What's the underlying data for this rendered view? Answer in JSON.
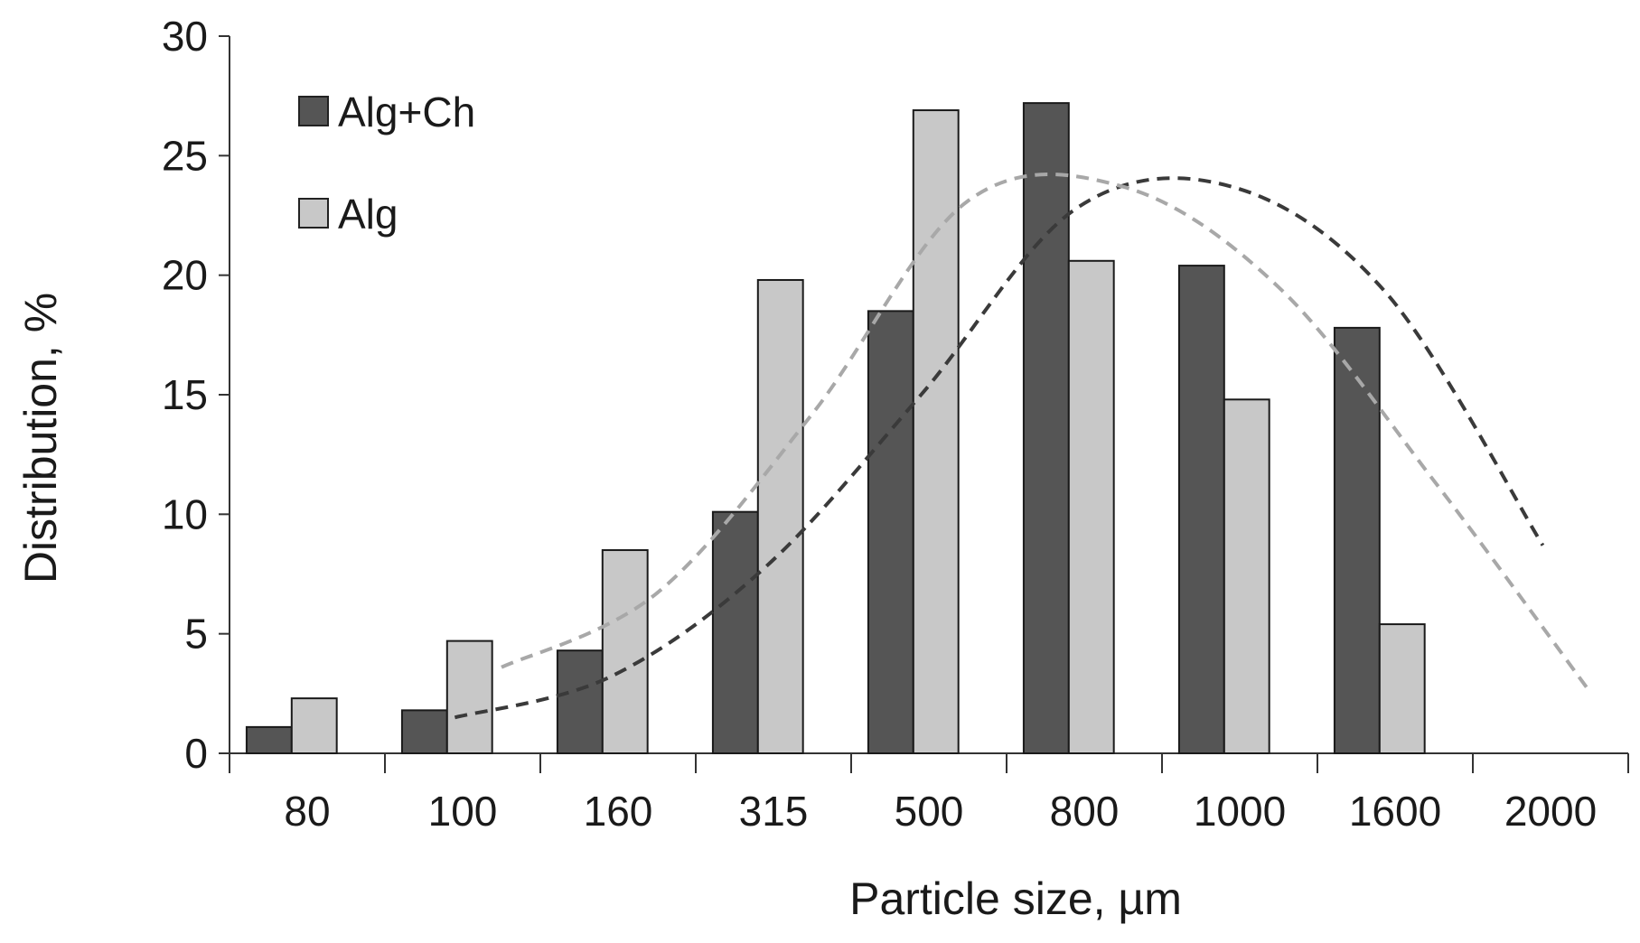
{
  "chart_data": {
    "type": "bar",
    "xlabel": "Particle size, µm",
    "ylabel": "Distribution, %",
    "categories": [
      "80",
      "100",
      "160",
      "315",
      "500",
      "800",
      "1000",
      "1600",
      "2000"
    ],
    "ylim": [
      0,
      30
    ],
    "yticks": [
      0,
      5,
      10,
      15,
      20,
      25,
      30
    ],
    "grid": false,
    "legend_position": "top-left",
    "series": [
      {
        "name": "Alg+Ch",
        "color": "#555555",
        "values": [
          1.1,
          1.8,
          4.3,
          10.1,
          18.5,
          27.2,
          20.4,
          17.8,
          null
        ]
      },
      {
        "name": "Alg",
        "color": "#c8c8c8",
        "values": [
          2.3,
          4.7,
          8.5,
          19.8,
          26.9,
          20.6,
          14.8,
          5.4,
          null
        ]
      }
    ],
    "trendlines": [
      {
        "series": "Alg+Ch",
        "style": "dashed",
        "color": "#3a3a3a",
        "x": [
          100,
          160,
          315,
          500,
          800,
          1000,
          1600,
          2000
        ],
        "values": [
          1.5,
          3.2,
          7.8,
          15.0,
          22.8,
          23.7,
          19.2,
          8.7
        ]
      },
      {
        "series": "Alg",
        "style": "dashed",
        "color": "#a8a8a8",
        "x": [
          100,
          160,
          315,
          500,
          800,
          1000,
          1600,
          2000
        ],
        "values": [
          3.6,
          6.7,
          14.2,
          23.1,
          23.7,
          19.5,
          11.4,
          2.6
        ]
      }
    ]
  }
}
